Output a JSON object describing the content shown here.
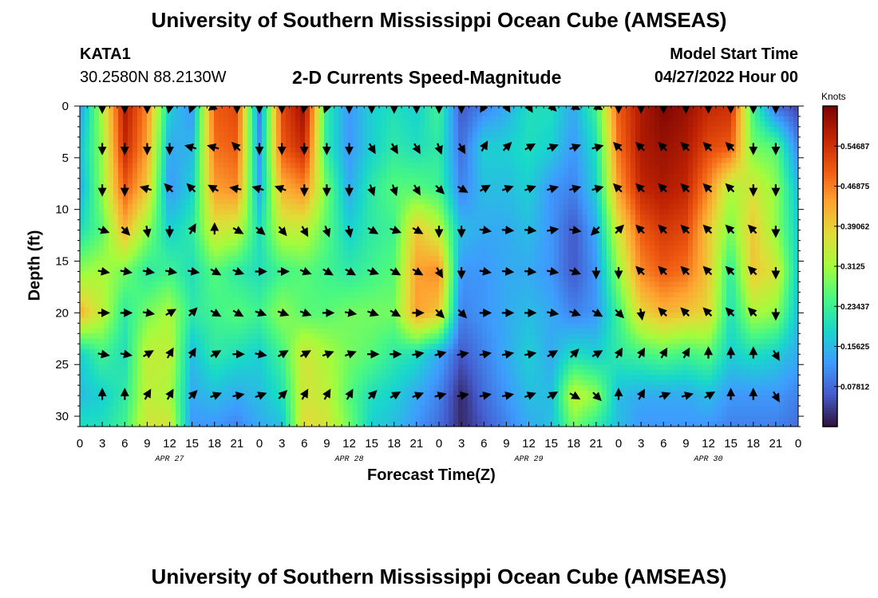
{
  "header": {
    "title": "University of Southern Mississippi Ocean Cube (AMSEAS)",
    "station_id": "KATA1",
    "coordinates": "30.2580N  88.2130W",
    "chart_title": "2-D Currents Speed-Magnitude",
    "model_start_label": "Model Start Time",
    "model_start_value": "04/27/2022 Hour 00"
  },
  "footer": {
    "title": "University of Southern Mississippi Ocean Cube (AMSEAS)"
  },
  "chart_data": {
    "type": "heatmap",
    "title": "2-D Currents Speed-Magnitude",
    "xlabel": "Forecast Time(Z)",
    "ylabel": "Depth (ft)",
    "x_range_hours": [
      0,
      96
    ],
    "x_ticks_hours": [
      0,
      3,
      6,
      9,
      12,
      15,
      18,
      21,
      24,
      27,
      30,
      33,
      36,
      39,
      42,
      45,
      48,
      51,
      54,
      57,
      60,
      63,
      66,
      69,
      72,
      75,
      78,
      81,
      84,
      87,
      90,
      93,
      96
    ],
    "x_tick_labels": [
      "0",
      "3",
      "6",
      "9",
      "12",
      "15",
      "18",
      "21",
      "0",
      "3",
      "6",
      "9",
      "12",
      "15",
      "18",
      "21",
      "0",
      "3",
      "6",
      "9",
      "12",
      "15",
      "18",
      "21",
      "0",
      "3",
      "6",
      "9",
      "12",
      "15",
      "18",
      "21",
      "0"
    ],
    "date_labels": [
      {
        "text": "APR 27",
        "hour": 12
      },
      {
        "text": "APR 28",
        "hour": 36
      },
      {
        "text": "APR 29",
        "hour": 60
      },
      {
        "text": "APR 30",
        "hour": 84
      }
    ],
    "ylim": [
      0,
      31
    ],
    "y_ticks": [
      0,
      5,
      10,
      15,
      20,
      25,
      30
    ],
    "y_tick_labels": [
      "0",
      "5",
      "10",
      "15",
      "20",
      "25",
      "30"
    ],
    "colorbar": {
      "label": "Knots",
      "min": 0.0,
      "max": 0.625,
      "ticks": [
        0.07812,
        0.15625,
        0.23437,
        0.3125,
        0.39062,
        0.46875,
        0.54687
      ],
      "tick_labels": [
        "0.07812",
        "0.15625",
        "0.23437",
        "0.3125",
        "0.39062",
        "0.46875",
        "0.54687"
      ]
    },
    "vector_depths_ft": [
      0,
      4,
      8,
      12,
      16,
      20,
      24,
      28
    ],
    "vector_hours": [
      3,
      6,
      9,
      12,
      15,
      18,
      21,
      24,
      27,
      30,
      33,
      36,
      39,
      42,
      45,
      48,
      51,
      54,
      57,
      60,
      63,
      66,
      69,
      72,
      75,
      78,
      81,
      84,
      87,
      90,
      93
    ],
    "speed_grid": {
      "hours": [
        0,
        3,
        6,
        9,
        12,
        15,
        18,
        21,
        24,
        27,
        30,
        33,
        36,
        39,
        42,
        45,
        48,
        51,
        54,
        57,
        60,
        63,
        66,
        69,
        72,
        75,
        78,
        81,
        84,
        87,
        90,
        93,
        96
      ],
      "depths_ft": [
        0,
        4,
        8,
        12,
        16,
        20,
        24,
        28,
        31
      ],
      "speed_knots": [
        [
          0.12,
          0.32,
          0.58,
          0.46,
          0.18,
          0.12,
          0.5,
          0.52,
          0.1,
          0.52,
          0.6,
          0.22,
          0.12,
          0.18,
          0.2,
          0.18,
          0.24,
          0.06,
          0.1,
          0.14,
          0.2,
          0.2,
          0.14,
          0.24,
          0.5,
          0.58,
          0.62,
          0.6,
          0.56,
          0.55,
          0.24,
          0.08,
          0.04
        ],
        [
          0.16,
          0.3,
          0.56,
          0.44,
          0.14,
          0.15,
          0.48,
          0.5,
          0.12,
          0.5,
          0.56,
          0.22,
          0.12,
          0.18,
          0.22,
          0.2,
          0.22,
          0.08,
          0.18,
          0.18,
          0.2,
          0.18,
          0.12,
          0.2,
          0.48,
          0.58,
          0.6,
          0.58,
          0.52,
          0.5,
          0.28,
          0.26,
          0.1
        ],
        [
          0.14,
          0.3,
          0.5,
          0.4,
          0.12,
          0.18,
          0.44,
          0.46,
          0.14,
          0.42,
          0.46,
          0.28,
          0.14,
          0.22,
          0.26,
          0.26,
          0.24,
          0.1,
          0.16,
          0.16,
          0.18,
          0.12,
          0.1,
          0.18,
          0.44,
          0.56,
          0.58,
          0.56,
          0.46,
          0.32,
          0.36,
          0.3,
          0.16
        ],
        [
          0.2,
          0.26,
          0.42,
          0.3,
          0.18,
          0.22,
          0.36,
          0.34,
          0.2,
          0.34,
          0.34,
          0.26,
          0.18,
          0.22,
          0.24,
          0.4,
          0.34,
          0.16,
          0.14,
          0.14,
          0.16,
          0.12,
          0.06,
          0.14,
          0.36,
          0.5,
          0.54,
          0.52,
          0.4,
          0.28,
          0.4,
          0.3,
          0.18
        ],
        [
          0.3,
          0.32,
          0.28,
          0.22,
          0.24,
          0.2,
          0.26,
          0.22,
          0.2,
          0.24,
          0.26,
          0.24,
          0.22,
          0.24,
          0.26,
          0.44,
          0.46,
          0.12,
          0.12,
          0.14,
          0.14,
          0.12,
          0.06,
          0.12,
          0.3,
          0.46,
          0.5,
          0.48,
          0.4,
          0.22,
          0.4,
          0.36,
          0.18
        ],
        [
          0.42,
          0.34,
          0.22,
          0.28,
          0.32,
          0.22,
          0.24,
          0.26,
          0.24,
          0.3,
          0.26,
          0.26,
          0.28,
          0.28,
          0.28,
          0.44,
          0.4,
          0.1,
          0.12,
          0.14,
          0.16,
          0.14,
          0.1,
          0.12,
          0.24,
          0.38,
          0.42,
          0.4,
          0.38,
          0.2,
          0.32,
          0.3,
          0.16
        ],
        [
          0.18,
          0.24,
          0.2,
          0.34,
          0.34,
          0.16,
          0.22,
          0.2,
          0.18,
          0.24,
          0.36,
          0.32,
          0.28,
          0.26,
          0.22,
          0.2,
          0.14,
          0.06,
          0.1,
          0.14,
          0.18,
          0.14,
          0.2,
          0.18,
          0.22,
          0.24,
          0.26,
          0.24,
          0.26,
          0.18,
          0.2,
          0.18,
          0.14
        ],
        [
          0.16,
          0.18,
          0.22,
          0.34,
          0.32,
          0.14,
          0.16,
          0.14,
          0.16,
          0.2,
          0.36,
          0.34,
          0.26,
          0.2,
          0.18,
          0.14,
          0.1,
          0.02,
          0.08,
          0.12,
          0.16,
          0.16,
          0.34,
          0.3,
          0.16,
          0.14,
          0.14,
          0.14,
          0.16,
          0.12,
          0.12,
          0.12,
          0.1
        ],
        [
          0.2,
          0.2,
          0.24,
          0.36,
          0.36,
          0.12,
          0.12,
          0.1,
          0.14,
          0.16,
          0.38,
          0.36,
          0.28,
          0.18,
          0.16,
          0.12,
          0.08,
          0.02,
          0.06,
          0.1,
          0.14,
          0.16,
          0.28,
          0.22,
          0.16,
          0.12,
          0.12,
          0.12,
          0.12,
          0.1,
          0.1,
          0.1,
          0.08
        ]
      ]
    },
    "vector_angles_deg": [
      [
        90,
        90,
        90,
        100,
        110,
        145,
        90,
        90,
        90,
        100,
        110,
        90,
        90,
        90,
        90,
        90,
        90,
        120,
        60,
        60,
        45,
        30,
        30,
        90,
        90,
        90,
        90,
        90,
        90,
        90,
        90
      ],
      [
        90,
        90,
        90,
        90,
        -165,
        -165,
        -135,
        90,
        90,
        90,
        90,
        90,
        60,
        60,
        60,
        70,
        60,
        -60,
        -45,
        -30,
        -20,
        -20,
        -15,
        -135,
        -135,
        -135,
        -135,
        -135,
        -135,
        90,
        90
      ],
      [
        90,
        90,
        -165,
        -135,
        -135,
        -150,
        -170,
        -165,
        -160,
        90,
        90,
        90,
        70,
        70,
        60,
        45,
        30,
        -30,
        -20,
        -20,
        -15,
        -15,
        -15,
        -135,
        -135,
        -135,
        -135,
        -135,
        -135,
        90,
        90
      ],
      [
        20,
        45,
        80,
        90,
        -60,
        -90,
        30,
        40,
        50,
        60,
        70,
        80,
        30,
        20,
        30,
        90,
        90,
        10,
        5,
        5,
        -10,
        10,
        135,
        -45,
        -135,
        -135,
        -135,
        -135,
        -135,
        -135,
        90
      ],
      [
        10,
        10,
        10,
        10,
        10,
        30,
        20,
        0,
        0,
        20,
        30,
        30,
        20,
        30,
        30,
        60,
        90,
        10,
        5,
        5,
        10,
        20,
        90,
        90,
        -135,
        -135,
        -135,
        -135,
        -135,
        -135,
        90
      ],
      [
        0,
        0,
        10,
        -30,
        -45,
        30,
        30,
        20,
        20,
        20,
        0,
        10,
        20,
        30,
        0,
        45,
        45,
        0,
        0,
        0,
        10,
        20,
        30,
        45,
        80,
        -135,
        -135,
        -135,
        -135,
        -135,
        90
      ],
      [
        10,
        10,
        -30,
        -60,
        -60,
        -30,
        0,
        10,
        -30,
        -30,
        -20,
        -20,
        0,
        0,
        -10,
        -15,
        -10,
        -10,
        -10,
        -10,
        -30,
        -45,
        -30,
        -60,
        -60,
        -60,
        -60,
        -90,
        -90,
        -90,
        60
      ],
      [
        -90,
        -90,
        -60,
        -60,
        -45,
        -20,
        -10,
        -20,
        -45,
        -60,
        -60,
        -60,
        -45,
        -30,
        -20,
        -15,
        -10,
        -10,
        -10,
        -20,
        -30,
        30,
        45,
        -90,
        -60,
        -20,
        -15,
        -30,
        -90,
        -90,
        60
      ]
    ]
  }
}
